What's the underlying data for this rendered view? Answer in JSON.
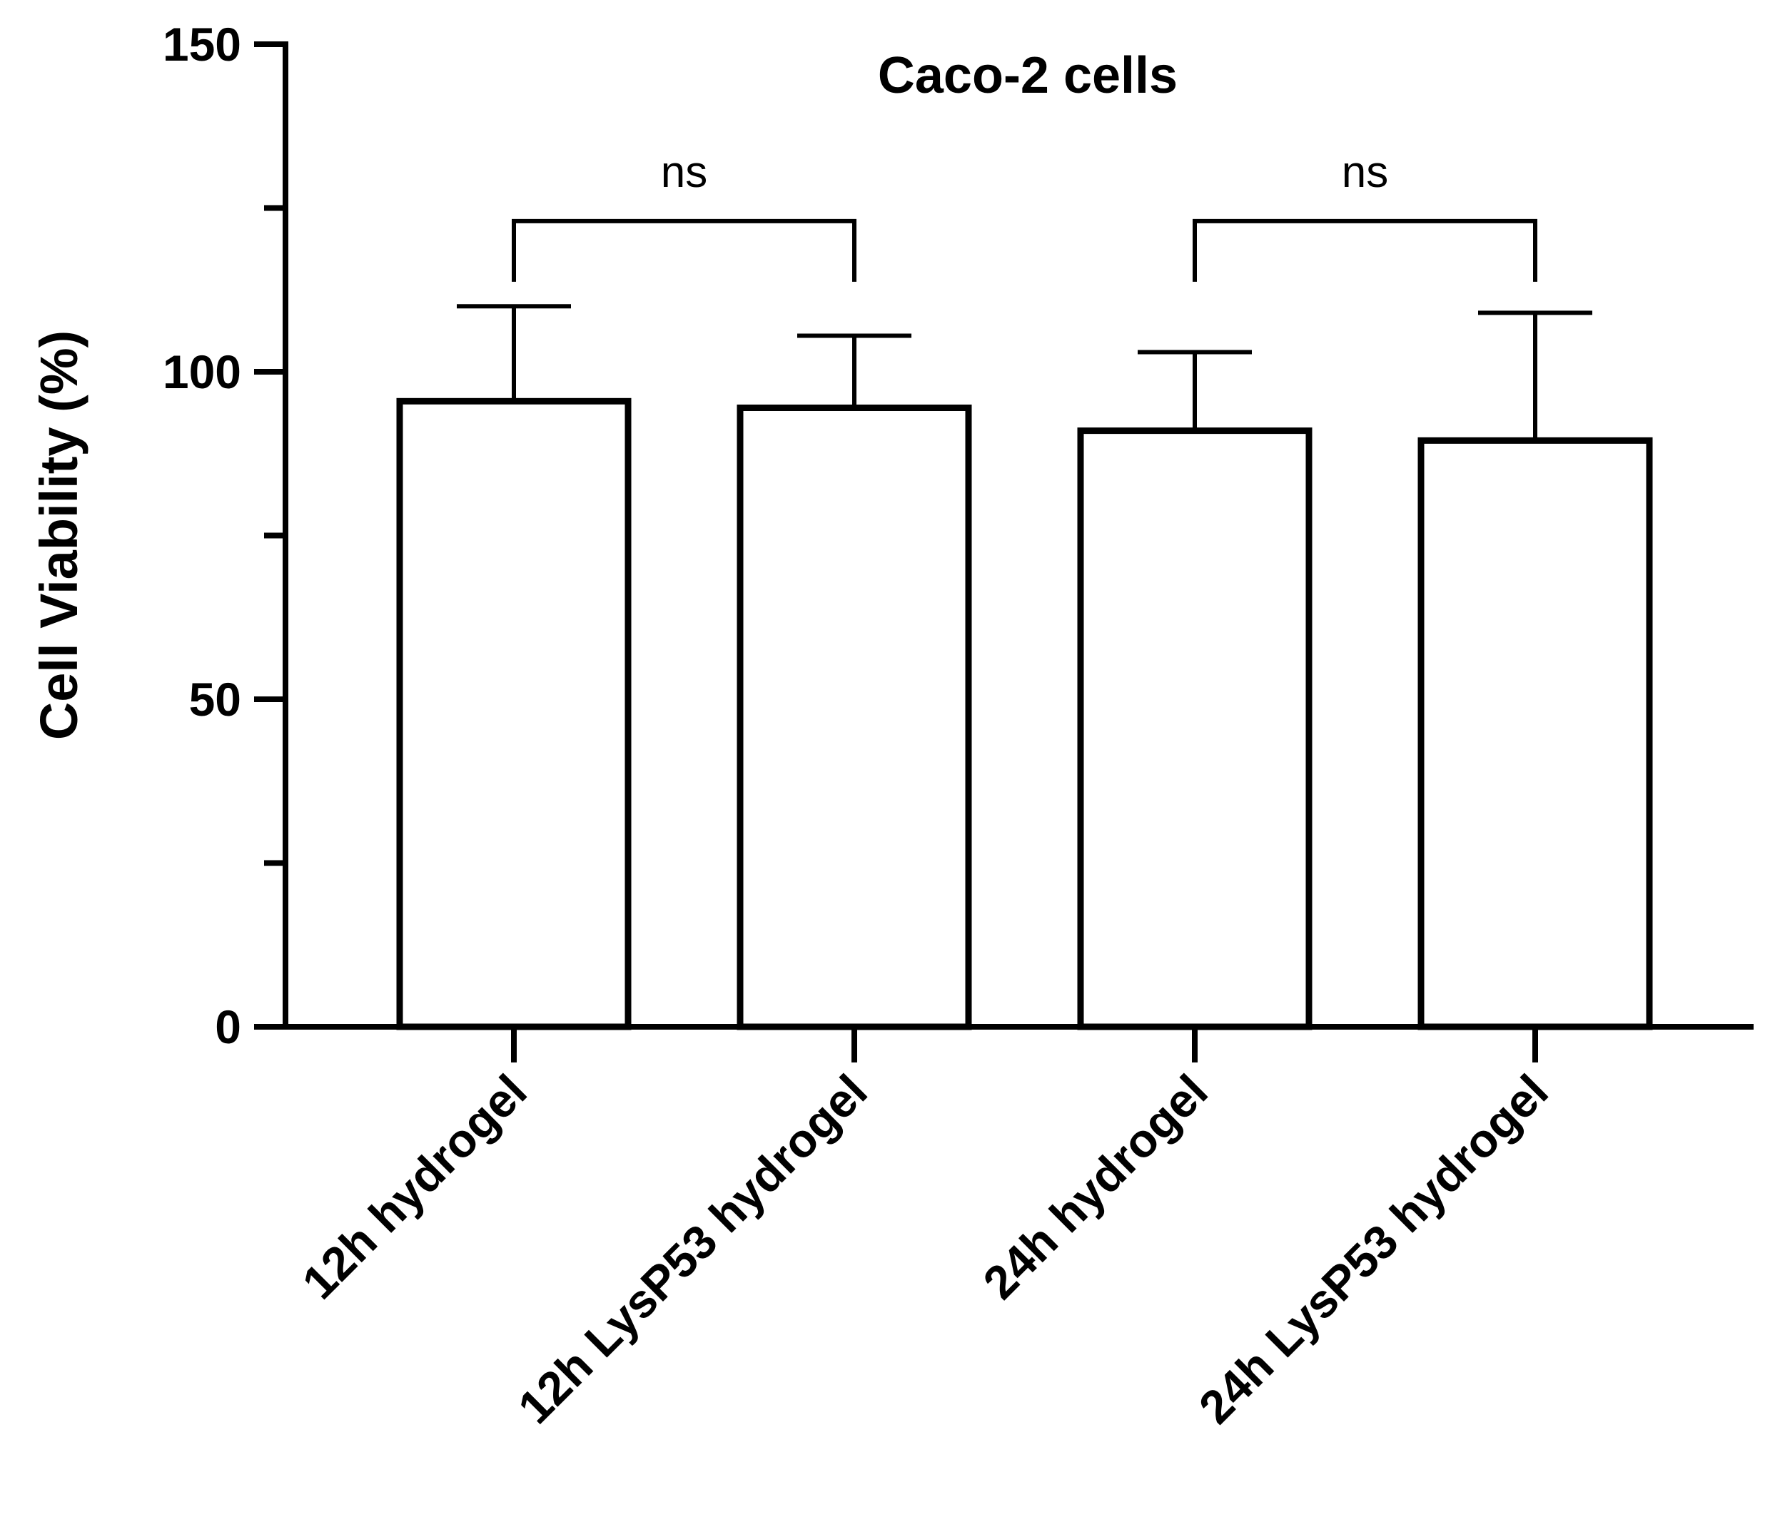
{
  "chart_data": {
    "type": "bar",
    "title": "Caco-2 cells",
    "xlabel": "",
    "ylabel": "Cell Viability (%)",
    "ylim": [
      0,
      150
    ],
    "yticks_major": [
      0,
      50,
      100,
      150
    ],
    "yticks_minor": [
      25,
      75,
      125
    ],
    "grid": false,
    "categories": [
      "12h hydrogel",
      "12h LysP53 hydrogel",
      "24h hydrogel",
      "24h LysP53 hydrogel"
    ],
    "series": [
      {
        "name": "Cell Viability",
        "values": [
          95.5,
          94.5,
          91,
          89.5
        ],
        "error_upper": [
          14.5,
          11,
          12,
          19.5
        ]
      }
    ],
    "comparisons": [
      {
        "from": 0,
        "to": 1,
        "label": "ns"
      },
      {
        "from": 2,
        "to": 3,
        "label": "ns"
      }
    ],
    "comparison_level": 123
  }
}
